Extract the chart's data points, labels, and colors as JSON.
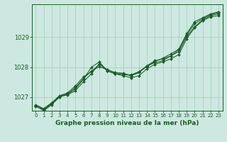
{
  "xlabel": "Graphe pression niveau de la mer (hPa)",
  "background_color": "#cde8e0",
  "grid_color": "#a8cfc4",
  "line_color": "#1a5c28",
  "xlim": [
    -0.5,
    23.5
  ],
  "ylim": [
    1026.55,
    1030.1
  ],
  "yticks": [
    1027,
    1028,
    1029
  ],
  "xticks": [
    0,
    1,
    2,
    3,
    4,
    5,
    6,
    7,
    8,
    9,
    10,
    11,
    12,
    13,
    14,
    15,
    16,
    17,
    18,
    19,
    20,
    21,
    22,
    23
  ],
  "series": [
    [
      1026.7,
      1026.58,
      1026.78,
      1027.0,
      1027.12,
      1027.32,
      1027.62,
      1027.88,
      1028.02,
      1027.92,
      1027.82,
      1027.78,
      1027.72,
      1027.82,
      1028.05,
      1028.15,
      1028.22,
      1028.38,
      1028.52,
      1029.02,
      1029.35,
      1029.58,
      1029.72,
      1029.78
    ],
    [
      1026.72,
      1026.55,
      1026.75,
      1027.02,
      1027.08,
      1027.22,
      1027.52,
      1027.78,
      1028.12,
      1027.88,
      1027.78,
      1027.72,
      1027.65,
      1027.72,
      1027.95,
      1028.1,
      1028.18,
      1028.28,
      1028.42,
      1028.95,
      1029.32,
      1029.55,
      1029.68,
      1029.72
    ],
    [
      1026.75,
      1026.62,
      1026.82,
      1027.05,
      1027.1,
      1027.28,
      1027.6,
      1028.0,
      1028.18,
      1027.88,
      1027.78,
      1027.75,
      1027.75,
      1027.85,
      1028.05,
      1028.22,
      1028.28,
      1028.38,
      1028.58,
      1029.08,
      1029.45,
      1029.62,
      1029.75,
      1029.82
    ],
    [
      1026.72,
      1026.6,
      1026.8,
      1027.05,
      1027.15,
      1027.38,
      1027.68,
      1027.85,
      1028.1,
      1027.92,
      1027.82,
      1027.8,
      1027.72,
      1027.85,
      1028.02,
      1028.2,
      1028.3,
      1028.45,
      1028.6,
      1029.12,
      1029.52,
      1029.65,
      1029.78,
      1029.85
    ]
  ]
}
